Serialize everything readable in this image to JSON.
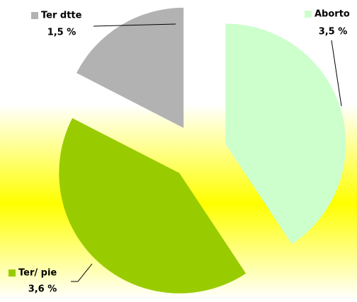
{
  "chart_data": {
    "type": "pie",
    "categories": [
      "Aborto",
      "Ter/ pie",
      "Ter dtte"
    ],
    "values": [
      3.5,
      3.6,
      1.5
    ],
    "value_labels": [
      "3,5 %",
      "3,6 %",
      "1,5 %"
    ],
    "colors": [
      "#ccffcc",
      "#99cc00",
      "#b2b2b2"
    ]
  }
}
